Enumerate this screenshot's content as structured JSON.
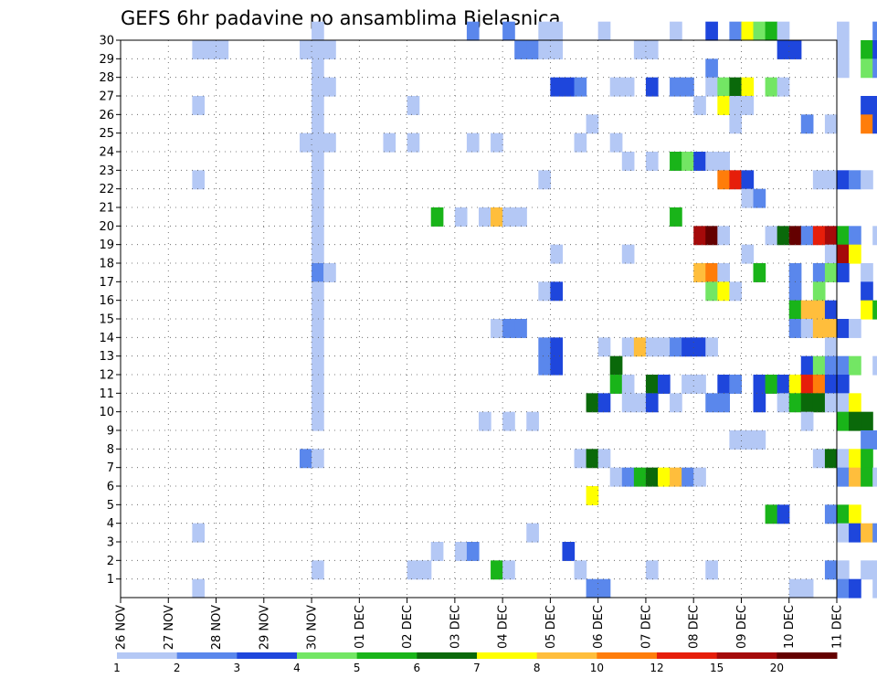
{
  "chart_data": {
    "type": "heatmap",
    "title": "GEFS 6hr padavine po ansamblima Bjelasnica",
    "x_ticks": [
      "26 NOV",
      "27 NOV",
      "28 NOV",
      "29 NOV",
      "30 NOV",
      "01 DEC",
      "02 DEC",
      "03 DEC",
      "04 DEC",
      "05 DEC",
      "06 DEC",
      "07 DEC",
      "08 DEC",
      "09 DEC",
      "10 DEC",
      "11 DEC"
    ],
    "y_ticks": [
      "1",
      "2",
      "3",
      "4",
      "5",
      "6",
      "7",
      "8",
      "9",
      "10",
      "11",
      "12",
      "13",
      "14",
      "15",
      "16",
      "17",
      "18",
      "19",
      "20",
      "21",
      "22",
      "23",
      "24",
      "25",
      "26",
      "27",
      "28",
      "29",
      "30"
    ],
    "ylim": [
      0,
      30
    ],
    "x_step_hours": 6,
    "grid": true,
    "legend": "bottom",
    "colorbar": {
      "ticks": [
        "1",
        "2",
        "3",
        "4",
        "5",
        "6",
        "7",
        "8",
        "10",
        "12",
        "15",
        "20"
      ],
      "colors": [
        "#b4c8f5",
        "#5a87ec",
        "#1e46dc",
        "#73e664",
        "#19b419",
        "#0a690a",
        "#ffff00",
        "#ffbe3c",
        "#ff7d0a",
        "#e61e0a",
        "#a50a0a",
        "#640000"
      ]
    },
    "cells": [
      [
        30,
        16,
        1
      ],
      [
        30,
        29,
        2
      ],
      [
        30,
        32,
        2
      ],
      [
        30,
        35,
        1
      ],
      [
        30,
        36,
        1
      ],
      [
        30,
        40,
        1
      ],
      [
        30,
        46,
        1
      ],
      [
        30,
        49,
        3
      ],
      [
        30,
        51,
        2
      ],
      [
        30,
        52,
        7
      ],
      [
        30,
        53,
        4
      ],
      [
        30,
        54,
        5
      ],
      [
        30,
        55,
        1
      ],
      [
        30,
        60,
        1
      ],
      [
        30,
        63,
        2
      ],
      [
        30,
        64,
        6
      ],
      [
        29,
        6,
        1
      ],
      [
        29,
        7,
        1
      ],
      [
        29,
        8,
        1
      ],
      [
        29,
        15,
        1
      ],
      [
        29,
        16,
        1
      ],
      [
        29,
        17,
        1
      ],
      [
        29,
        33,
        2
      ],
      [
        29,
        34,
        2
      ],
      [
        29,
        35,
        1
      ],
      [
        29,
        36,
        1
      ],
      [
        29,
        43,
        1
      ],
      [
        29,
        44,
        1
      ],
      [
        29,
        55,
        3
      ],
      [
        29,
        56,
        3
      ],
      [
        29,
        60,
        1
      ],
      [
        29,
        62,
        5
      ],
      [
        29,
        63,
        3
      ],
      [
        28,
        16,
        1
      ],
      [
        28,
        49,
        2
      ],
      [
        28,
        60,
        1
      ],
      [
        28,
        62,
        4
      ],
      [
        28,
        63,
        2
      ],
      [
        27,
        16,
        1
      ],
      [
        27,
        17,
        1
      ],
      [
        27,
        36,
        3
      ],
      [
        27,
        37,
        3
      ],
      [
        27,
        38,
        2
      ],
      [
        27,
        41,
        1
      ],
      [
        27,
        42,
        1
      ],
      [
        27,
        44,
        3
      ],
      [
        27,
        46,
        2
      ],
      [
        27,
        47,
        2
      ],
      [
        27,
        49,
        1
      ],
      [
        27,
        50,
        4
      ],
      [
        27,
        51,
        6
      ],
      [
        27,
        52,
        7
      ],
      [
        27,
        54,
        4
      ],
      [
        27,
        55,
        1
      ],
      [
        26,
        6,
        1
      ],
      [
        26,
        16,
        1
      ],
      [
        26,
        24,
        1
      ],
      [
        26,
        48,
        1
      ],
      [
        26,
        50,
        7
      ],
      [
        26,
        51,
        1
      ],
      [
        26,
        52,
        1
      ],
      [
        26,
        62,
        3
      ],
      [
        26,
        63,
        3
      ],
      [
        25,
        16,
        1
      ],
      [
        25,
        39,
        1
      ],
      [
        25,
        51,
        1
      ],
      [
        25,
        57,
        2
      ],
      [
        25,
        59,
        1
      ],
      [
        25,
        62,
        9
      ],
      [
        25,
        63,
        3
      ],
      [
        24,
        15,
        1
      ],
      [
        24,
        16,
        1
      ],
      [
        24,
        17,
        1
      ],
      [
        24,
        22,
        1
      ],
      [
        24,
        24,
        1
      ],
      [
        24,
        29,
        1
      ],
      [
        24,
        31,
        1
      ],
      [
        24,
        38,
        1
      ],
      [
        24,
        41,
        1
      ],
      [
        24,
        64,
        1
      ],
      [
        23,
        16,
        1
      ],
      [
        23,
        42,
        1
      ],
      [
        23,
        44,
        1
      ],
      [
        23,
        46,
        5
      ],
      [
        23,
        47,
        4
      ],
      [
        23,
        48,
        3
      ],
      [
        23,
        49,
        1
      ],
      [
        23,
        50,
        1
      ],
      [
        23,
        64,
        2
      ],
      [
        22,
        6,
        1
      ],
      [
        22,
        16,
        1
      ],
      [
        22,
        35,
        1
      ],
      [
        22,
        50,
        9
      ],
      [
        22,
        51,
        10
      ],
      [
        22,
        52,
        3
      ],
      [
        22,
        58,
        1
      ],
      [
        22,
        59,
        1
      ],
      [
        22,
        60,
        3
      ],
      [
        22,
        61,
        2
      ],
      [
        22,
        62,
        1
      ],
      [
        21,
        16,
        1
      ],
      [
        21,
        52,
        1
      ],
      [
        21,
        53,
        2
      ],
      [
        20,
        16,
        1
      ],
      [
        20,
        26,
        5
      ],
      [
        20,
        28,
        1
      ],
      [
        20,
        30,
        1
      ],
      [
        20,
        31,
        8
      ],
      [
        20,
        32,
        1
      ],
      [
        20,
        33,
        1
      ],
      [
        20,
        46,
        5
      ],
      [
        20,
        64,
        2
      ],
      [
        19,
        16,
        1
      ],
      [
        19,
        48,
        11
      ],
      [
        19,
        49,
        12
      ],
      [
        19,
        50,
        1
      ],
      [
        19,
        54,
        1
      ],
      [
        19,
        55,
        6
      ],
      [
        19,
        56,
        12
      ],
      [
        19,
        57,
        2
      ],
      [
        19,
        58,
        10
      ],
      [
        19,
        59,
        11
      ],
      [
        19,
        60,
        5
      ],
      [
        19,
        61,
        2
      ],
      [
        19,
        63,
        1
      ],
      [
        18,
        16,
        1
      ],
      [
        18,
        36,
        1
      ],
      [
        18,
        42,
        1
      ],
      [
        18,
        52,
        1
      ],
      [
        18,
        59,
        1
      ],
      [
        18,
        60,
        11
      ],
      [
        18,
        61,
        7
      ],
      [
        17,
        16,
        2
      ],
      [
        17,
        17,
        1
      ],
      [
        17,
        48,
        8
      ],
      [
        17,
        49,
        9
      ],
      [
        17,
        50,
        1
      ],
      [
        17,
        53,
        5
      ],
      [
        17,
        56,
        2
      ],
      [
        17,
        58,
        2
      ],
      [
        17,
        59,
        4
      ],
      [
        17,
        60,
        3
      ],
      [
        17,
        62,
        1
      ],
      [
        16,
        16,
        1
      ],
      [
        16,
        35,
        1
      ],
      [
        16,
        36,
        3
      ],
      [
        16,
        49,
        4
      ],
      [
        16,
        50,
        7
      ],
      [
        16,
        51,
        1
      ],
      [
        16,
        56,
        2
      ],
      [
        16,
        58,
        4
      ],
      [
        16,
        62,
        3
      ],
      [
        16,
        64,
        1
      ],
      [
        15,
        16,
        1
      ],
      [
        15,
        56,
        5
      ],
      [
        15,
        57,
        8
      ],
      [
        15,
        58,
        8
      ],
      [
        15,
        59,
        3
      ],
      [
        15,
        62,
        7
      ],
      [
        15,
        63,
        5
      ],
      [
        15,
        64,
        9
      ],
      [
        15,
        65,
        6
      ],
      [
        14,
        16,
        1
      ],
      [
        14,
        31,
        1
      ],
      [
        14,
        32,
        2
      ],
      [
        14,
        33,
        2
      ],
      [
        14,
        56,
        2
      ],
      [
        14,
        57,
        1
      ],
      [
        14,
        58,
        8
      ],
      [
        14,
        59,
        8
      ],
      [
        14,
        60,
        3
      ],
      [
        14,
        61,
        1
      ],
      [
        14,
        64,
        2
      ],
      [
        13,
        16,
        1
      ],
      [
        13,
        35,
        2
      ],
      [
        13,
        36,
        3
      ],
      [
        13,
        40,
        1
      ],
      [
        13,
        42,
        1
      ],
      [
        13,
        43,
        8
      ],
      [
        13,
        44,
        1
      ],
      [
        13,
        45,
        1
      ],
      [
        13,
        46,
        2
      ],
      [
        13,
        47,
        3
      ],
      [
        13,
        48,
        3
      ],
      [
        13,
        49,
        1
      ],
      [
        13,
        59,
        1
      ],
      [
        12,
        16,
        1
      ],
      [
        12,
        35,
        2
      ],
      [
        12,
        36,
        3
      ],
      [
        12,
        41,
        6
      ],
      [
        12,
        57,
        3
      ],
      [
        12,
        58,
        4
      ],
      [
        12,
        59,
        2
      ],
      [
        12,
        60,
        2
      ],
      [
        12,
        61,
        4
      ],
      [
        12,
        63,
        1
      ],
      [
        12,
        64,
        2
      ],
      [
        11,
        16,
        1
      ],
      [
        11,
        41,
        5
      ],
      [
        11,
        42,
        1
      ],
      [
        11,
        44,
        6
      ],
      [
        11,
        45,
        3
      ],
      [
        11,
        47,
        1
      ],
      [
        11,
        48,
        1
      ],
      [
        11,
        50,
        3
      ],
      [
        11,
        51,
        2
      ],
      [
        11,
        53,
        3
      ],
      [
        11,
        54,
        5
      ],
      [
        11,
        55,
        3
      ],
      [
        11,
        56,
        7
      ],
      [
        11,
        57,
        10
      ],
      [
        11,
        58,
        9
      ],
      [
        11,
        59,
        3
      ],
      [
        11,
        60,
        3
      ],
      [
        10,
        16,
        1
      ],
      [
        10,
        39,
        6
      ],
      [
        10,
        40,
        3
      ],
      [
        10,
        42,
        1
      ],
      [
        10,
        43,
        1
      ],
      [
        10,
        44,
        3
      ],
      [
        10,
        46,
        1
      ],
      [
        10,
        49,
        2
      ],
      [
        10,
        50,
        2
      ],
      [
        10,
        53,
        3
      ],
      [
        10,
        55,
        1
      ],
      [
        10,
        56,
        5
      ],
      [
        10,
        57,
        6
      ],
      [
        10,
        58,
        6
      ],
      [
        10,
        59,
        1
      ],
      [
        10,
        60,
        1
      ],
      [
        10,
        61,
        7
      ],
      [
        9,
        16,
        1
      ],
      [
        9,
        30,
        1
      ],
      [
        9,
        32,
        1
      ],
      [
        9,
        34,
        1
      ],
      [
        9,
        57,
        1
      ],
      [
        9,
        60,
        5
      ],
      [
        9,
        61,
        6
      ],
      [
        9,
        62,
        6
      ],
      [
        9,
        64,
        1
      ],
      [
        9,
        65,
        7
      ],
      [
        8,
        51,
        1
      ],
      [
        8,
        52,
        1
      ],
      [
        8,
        53,
        1
      ],
      [
        8,
        62,
        2
      ],
      [
        8,
        63,
        2
      ],
      [
        8,
        64,
        5
      ],
      [
        8,
        65,
        8
      ],
      [
        7,
        15,
        2
      ],
      [
        7,
        16,
        1
      ],
      [
        7,
        38,
        1
      ],
      [
        7,
        39,
        6
      ],
      [
        7,
        40,
        1
      ],
      [
        7,
        58,
        1
      ],
      [
        7,
        59,
        6
      ],
      [
        7,
        60,
        1
      ],
      [
        7,
        61,
        7
      ],
      [
        7,
        62,
        5
      ],
      [
        7,
        65,
        11
      ],
      [
        6,
        41,
        1
      ],
      [
        6,
        42,
        2
      ],
      [
        6,
        43,
        5
      ],
      [
        6,
        44,
        6
      ],
      [
        6,
        45,
        7
      ],
      [
        6,
        46,
        8
      ],
      [
        6,
        47,
        2
      ],
      [
        6,
        48,
        1
      ],
      [
        6,
        60,
        2
      ],
      [
        6,
        61,
        8
      ],
      [
        6,
        62,
        5
      ],
      [
        6,
        63,
        1
      ],
      [
        6,
        64,
        6
      ],
      [
        6,
        65,
        2
      ],
      [
        5,
        39,
        7
      ],
      [
        5,
        64,
        10
      ],
      [
        5,
        65,
        2
      ],
      [
        4,
        54,
        5
      ],
      [
        4,
        55,
        3
      ],
      [
        4,
        59,
        2
      ],
      [
        4,
        60,
        5
      ],
      [
        4,
        61,
        7
      ],
      [
        3,
        6,
        1
      ],
      [
        3,
        34,
        1
      ],
      [
        3,
        60,
        1
      ],
      [
        3,
        61,
        3
      ],
      [
        3,
        62,
        8
      ],
      [
        3,
        63,
        2
      ],
      [
        3,
        64,
        11
      ],
      [
        3,
        65,
        1
      ],
      [
        2,
        26,
        1
      ],
      [
        2,
        28,
        1
      ],
      [
        2,
        29,
        2
      ],
      [
        2,
        37,
        3
      ],
      [
        1,
        16,
        1
      ],
      [
        1,
        24,
        1
      ],
      [
        1,
        25,
        1
      ],
      [
        1,
        31,
        5
      ],
      [
        1,
        32,
        1
      ],
      [
        1,
        38,
        1
      ],
      [
        1,
        44,
        1
      ],
      [
        1,
        49,
        1
      ],
      [
        1,
        59,
        2
      ],
      [
        1,
        60,
        1
      ],
      [
        1,
        62,
        1
      ],
      [
        1,
        63,
        1
      ],
      [
        1,
        64,
        3
      ],
      [
        0,
        6,
        1
      ],
      [
        0,
        39,
        2
      ],
      [
        0,
        40,
        2
      ],
      [
        0,
        56,
        1
      ],
      [
        0,
        57,
        1
      ],
      [
        0,
        60,
        2
      ],
      [
        0,
        61,
        3
      ],
      [
        0,
        63,
        1
      ],
      [
        0,
        64,
        1
      ],
      [
        0,
        65,
        1
      ]
    ]
  }
}
